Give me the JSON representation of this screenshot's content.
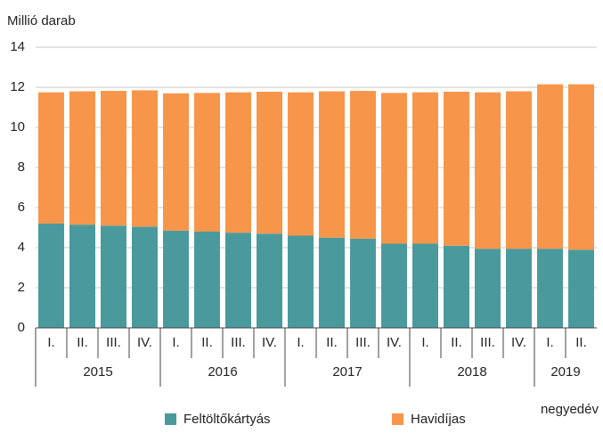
{
  "chart_data": {
    "type": "stacked_bar",
    "y_label": "Millió darab",
    "x_label": "negyedév",
    "categories": [
      "I.",
      "II.",
      "III.",
      "IV.",
      "I.",
      "II.",
      "III.",
      "IV.",
      "I.",
      "II.",
      "III.",
      "IV.",
      "I.",
      "II.",
      "III.",
      "IV.",
      "I.",
      "II."
    ],
    "category_groups": [
      {
        "label": "2015",
        "size": 4
      },
      {
        "label": "2016",
        "size": 4
      },
      {
        "label": "2017",
        "size": 4
      },
      {
        "label": "2018",
        "size": 4
      },
      {
        "label": "2019",
        "size": 2
      }
    ],
    "series": [
      {
        "name": "Feltöltőkártyás",
        "color": "#4a9a9d",
        "values": [
          5.2,
          5.15,
          5.1,
          5.05,
          4.85,
          4.8,
          4.75,
          4.7,
          4.6,
          4.5,
          4.45,
          4.2,
          4.2,
          4.1,
          3.95,
          3.95,
          3.95,
          3.9
        ]
      },
      {
        "name": "Havidíjas",
        "color": "#f7964a",
        "values": [
          6.55,
          6.65,
          6.72,
          6.8,
          6.85,
          6.92,
          7.0,
          7.08,
          7.15,
          7.3,
          7.37,
          7.52,
          7.55,
          7.68,
          7.8,
          7.85,
          8.2,
          8.25
        ]
      }
    ],
    "ylim": [
      0,
      14
    ],
    "yticks": [
      0,
      2,
      4,
      6,
      8,
      10,
      12,
      14
    ],
    "grid": true
  }
}
